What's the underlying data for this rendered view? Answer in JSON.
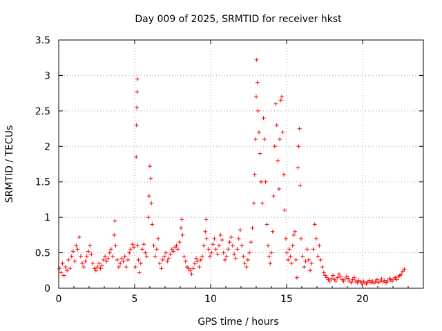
{
  "chart_data": {
    "type": "scatter",
    "title": "Day 009 of 2025, SRMTID for receiver hkst",
    "xlabel": "GPS time / hours",
    "ylabel": "SRMTID / TECUs",
    "xlim": [
      0,
      24
    ],
    "ylim": [
      0,
      3.5
    ],
    "xticks": [
      0,
      5,
      10,
      15,
      20
    ],
    "xtick_labels": [
      "0",
      "5",
      "10",
      "15",
      "20"
    ],
    "yticks": [
      0,
      0.5,
      1,
      1.5,
      2,
      2.5,
      3,
      3.5
    ],
    "ytick_labels": [
      "0",
      "0.5",
      "1",
      "1.5",
      "2",
      "2.5",
      "3",
      "3.5"
    ],
    "grid": true,
    "marker": "+",
    "marker_color": "#ff0000",
    "series": [
      {
        "name": "SRMTID",
        "points": [
          [
            0.05,
            0.28
          ],
          [
            0.15,
            0.22
          ],
          [
            0.25,
            0.35
          ],
          [
            0.35,
            0.18
          ],
          [
            0.45,
            0.3
          ],
          [
            0.55,
            0.25
          ],
          [
            0.65,
            0.4
          ],
          [
            0.75,
            0.28
          ],
          [
            0.85,
            0.45
          ],
          [
            0.95,
            0.52
          ],
          [
            1.05,
            0.38
          ],
          [
            1.15,
            0.6
          ],
          [
            1.25,
            0.55
          ],
          [
            1.35,
            0.72
          ],
          [
            1.45,
            0.45
          ],
          [
            1.55,
            0.35
          ],
          [
            1.65,
            0.3
          ],
          [
            1.75,
            0.38
          ],
          [
            1.85,
            0.45
          ],
          [
            1.95,
            0.52
          ],
          [
            2.05,
            0.6
          ],
          [
            2.15,
            0.48
          ],
          [
            2.25,
            0.35
          ],
          [
            2.35,
            0.28
          ],
          [
            2.45,
            0.25
          ],
          [
            2.55,
            0.3
          ],
          [
            2.65,
            0.35
          ],
          [
            2.75,
            0.28
          ],
          [
            2.85,
            0.32
          ],
          [
            2.95,
            0.4
          ],
          [
            3.05,
            0.45
          ],
          [
            3.15,
            0.38
          ],
          [
            3.25,
            0.42
          ],
          [
            3.35,
            0.5
          ],
          [
            3.45,
            0.55
          ],
          [
            3.55,
            0.45
          ],
          [
            3.65,
            0.75
          ],
          [
            3.7,
            0.95
          ],
          [
            3.75,
            0.6
          ],
          [
            3.85,
            0.4
          ],
          [
            3.95,
            0.3
          ],
          [
            4.05,
            0.35
          ],
          [
            4.15,
            0.42
          ],
          [
            4.25,
            0.38
          ],
          [
            4.35,
            0.45
          ],
          [
            4.45,
            0.3
          ],
          [
            4.55,
            0.4
          ],
          [
            4.65,
            0.5
          ],
          [
            4.75,
            0.55
          ],
          [
            4.85,
            0.62
          ],
          [
            4.95,
            0.58
          ],
          [
            5.05,
            0.3
          ],
          [
            5.1,
            1.85
          ],
          [
            5.12,
            2.3
          ],
          [
            5.14,
            2.55
          ],
          [
            5.16,
            2.77
          ],
          [
            5.18,
            2.95
          ],
          [
            5.2,
            0.6
          ],
          [
            5.25,
            0.4
          ],
          [
            5.3,
            0.22
          ],
          [
            5.4,
            0.35
          ],
          [
            5.5,
            0.55
          ],
          [
            5.6,
            0.62
          ],
          [
            5.7,
            0.5
          ],
          [
            5.8,
            0.45
          ],
          [
            5.9,
            1.0
          ],
          [
            5.95,
            1.3
          ],
          [
            6.0,
            1.72
          ],
          [
            6.05,
            1.55
          ],
          [
            6.1,
            1.2
          ],
          [
            6.15,
            0.9
          ],
          [
            6.25,
            0.6
          ],
          [
            6.35,
            0.45
          ],
          [
            6.45,
            0.55
          ],
          [
            6.55,
            0.7
          ],
          [
            6.65,
            0.35
          ],
          [
            6.75,
            0.28
          ],
          [
            6.85,
            0.4
          ],
          [
            6.95,
            0.45
          ],
          [
            7.05,
            0.5
          ],
          [
            7.15,
            0.38
          ],
          [
            7.25,
            0.42
          ],
          [
            7.35,
            0.48
          ],
          [
            7.45,
            0.55
          ],
          [
            7.55,
            0.52
          ],
          [
            7.65,
            0.58
          ],
          [
            7.75,
            0.6
          ],
          [
            7.85,
            0.55
          ],
          [
            7.95,
            0.65
          ],
          [
            8.05,
            0.85
          ],
          [
            8.1,
            0.97
          ],
          [
            8.15,
            0.75
          ],
          [
            8.25,
            0.45
          ],
          [
            8.35,
            0.38
          ],
          [
            8.45,
            0.3
          ],
          [
            8.55,
            0.28
          ],
          [
            8.65,
            0.25
          ],
          [
            8.75,
            0.2
          ],
          [
            8.85,
            0.28
          ],
          [
            8.95,
            0.35
          ],
          [
            9.05,
            0.42
          ],
          [
            9.15,
            0.38
          ],
          [
            9.25,
            0.3
          ],
          [
            9.35,
            0.4
          ],
          [
            9.45,
            0.45
          ],
          [
            9.55,
            0.6
          ],
          [
            9.65,
            0.8
          ],
          [
            9.7,
            0.97
          ],
          [
            9.75,
            0.7
          ],
          [
            9.85,
            0.55
          ],
          [
            9.95,
            0.45
          ],
          [
            10.05,
            0.5
          ],
          [
            10.15,
            0.62
          ],
          [
            10.25,
            0.7
          ],
          [
            10.35,
            0.55
          ],
          [
            10.45,
            0.48
          ],
          [
            10.55,
            0.6
          ],
          [
            10.65,
            0.75
          ],
          [
            10.75,
            0.68
          ],
          [
            10.85,
            0.5
          ],
          [
            10.95,
            0.4
          ],
          [
            11.05,
            0.45
          ],
          [
            11.15,
            0.55
          ],
          [
            11.25,
            0.65
          ],
          [
            11.35,
            0.72
          ],
          [
            11.45,
            0.6
          ],
          [
            11.55,
            0.48
          ],
          [
            11.65,
            0.42
          ],
          [
            11.75,
            0.55
          ],
          [
            11.85,
            0.7
          ],
          [
            11.95,
            0.82
          ],
          [
            12.05,
            0.6
          ],
          [
            12.15,
            0.45
          ],
          [
            12.25,
            0.35
          ],
          [
            12.35,
            0.3
          ],
          [
            12.45,
            0.4
          ],
          [
            12.55,
            0.5
          ],
          [
            12.65,
            0.65
          ],
          [
            12.75,
            0.85
          ],
          [
            12.85,
            1.2
          ],
          [
            12.9,
            1.6
          ],
          [
            12.95,
            2.1
          ],
          [
            13.0,
            2.7
          ],
          [
            13.03,
            3.22
          ],
          [
            13.08,
            2.9
          ],
          [
            13.12,
            2.5
          ],
          [
            13.18,
            2.2
          ],
          [
            13.25,
            1.9
          ],
          [
            13.32,
            1.5
          ],
          [
            13.4,
            1.2
          ],
          [
            13.48,
            2.4
          ],
          [
            13.55,
            2.1
          ],
          [
            13.62,
            1.5
          ],
          [
            13.7,
            0.9
          ],
          [
            13.78,
            0.6
          ],
          [
            13.85,
            0.45
          ],
          [
            13.92,
            0.35
          ],
          [
            14.0,
            0.5
          ],
          [
            14.08,
            0.8
          ],
          [
            14.15,
            1.3
          ],
          [
            14.22,
            2.0
          ],
          [
            14.28,
            2.6
          ],
          [
            14.35,
            2.3
          ],
          [
            14.42,
            1.8
          ],
          [
            14.5,
            1.4
          ],
          [
            14.55,
            2.1
          ],
          [
            14.62,
            2.65
          ],
          [
            14.68,
            2.7
          ],
          [
            14.75,
            2.2
          ],
          [
            14.82,
            1.6
          ],
          [
            14.88,
            1.1
          ],
          [
            14.95,
            0.7
          ],
          [
            15.02,
            0.5
          ],
          [
            15.1,
            0.4
          ],
          [
            15.18,
            0.55
          ],
          [
            15.25,
            0.45
          ],
          [
            15.32,
            0.35
          ],
          [
            15.4,
            0.6
          ],
          [
            15.48,
            0.75
          ],
          [
            15.55,
            0.8
          ],
          [
            15.62,
            0.4
          ],
          [
            15.68,
            0.15
          ],
          [
            15.75,
            1.7
          ],
          [
            15.8,
            2.0
          ],
          [
            15.85,
            2.25
          ],
          [
            15.9,
            1.45
          ],
          [
            15.95,
            0.7
          ],
          [
            16.05,
            0.45
          ],
          [
            16.15,
            0.3
          ],
          [
            16.25,
            0.38
          ],
          [
            16.35,
            0.55
          ],
          [
            16.45,
            0.4
          ],
          [
            16.55,
            0.25
          ],
          [
            16.65,
            0.35
          ],
          [
            16.75,
            0.55
          ],
          [
            16.85,
            0.9
          ],
          [
            16.95,
            0.7
          ],
          [
            17.05,
            0.45
          ],
          [
            17.15,
            0.6
          ],
          [
            17.25,
            0.4
          ],
          [
            17.35,
            0.3
          ],
          [
            17.45,
            0.22
          ],
          [
            17.55,
            0.18
          ],
          [
            17.65,
            0.15
          ],
          [
            17.75,
            0.12
          ],
          [
            17.85,
            0.1
          ],
          [
            17.95,
            0.14
          ],
          [
            18.05,
            0.18
          ],
          [
            18.15,
            0.12
          ],
          [
            18.25,
            0.1
          ],
          [
            18.35,
            0.15
          ],
          [
            18.45,
            0.2
          ],
          [
            18.55,
            0.16
          ],
          [
            18.65,
            0.12
          ],
          [
            18.75,
            0.1
          ],
          [
            18.85,
            0.13
          ],
          [
            18.95,
            0.17
          ],
          [
            19.05,
            0.14
          ],
          [
            19.15,
            0.1
          ],
          [
            19.25,
            0.08
          ],
          [
            19.35,
            0.12
          ],
          [
            19.45,
            0.15
          ],
          [
            19.55,
            0.1
          ],
          [
            19.65,
            0.08
          ],
          [
            19.75,
            0.11
          ],
          [
            19.85,
            0.09
          ],
          [
            19.95,
            0.07
          ],
          [
            20.05,
            0.1
          ],
          [
            20.15,
            0.08
          ],
          [
            20.25,
            0.06
          ],
          [
            20.35,
            0.09
          ],
          [
            20.45,
            0.11
          ],
          [
            20.55,
            0.08
          ],
          [
            20.65,
            0.1
          ],
          [
            20.75,
            0.07
          ],
          [
            20.85,
            0.09
          ],
          [
            20.95,
            0.12
          ],
          [
            21.05,
            0.08
          ],
          [
            21.15,
            0.1
          ],
          [
            21.25,
            0.13
          ],
          [
            21.35,
            0.09
          ],
          [
            21.45,
            0.11
          ],
          [
            21.55,
            0.08
          ],
          [
            21.65,
            0.1
          ],
          [
            21.75,
            0.14
          ],
          [
            21.85,
            0.12
          ],
          [
            21.95,
            0.1
          ],
          [
            22.05,
            0.13
          ],
          [
            22.15,
            0.15
          ],
          [
            22.25,
            0.12
          ],
          [
            22.35,
            0.16
          ],
          [
            22.45,
            0.18
          ],
          [
            22.55,
            0.2
          ],
          [
            22.65,
            0.24
          ],
          [
            22.75,
            0.27
          ]
        ]
      }
    ]
  }
}
